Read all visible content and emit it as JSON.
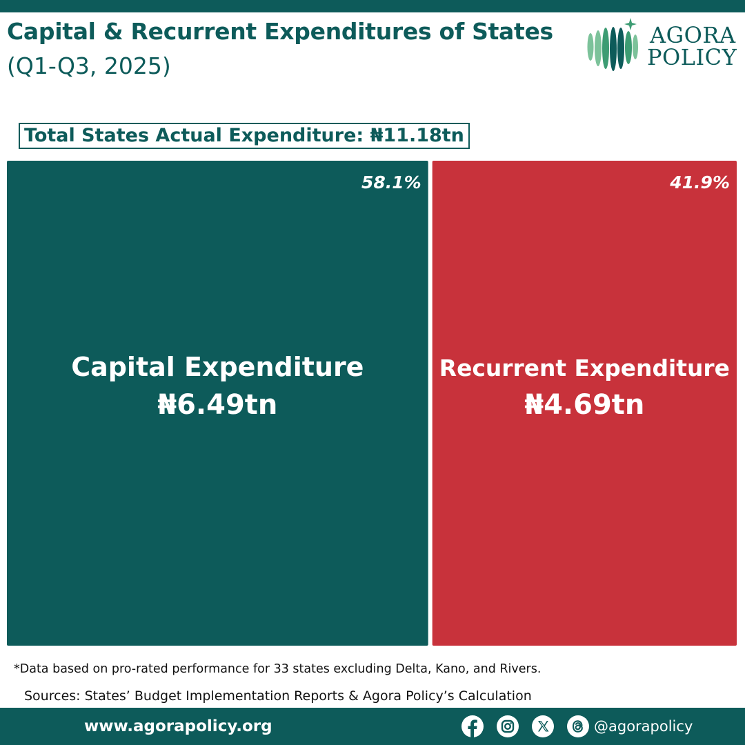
{
  "header": {
    "title": "Capital & Recurrent Expenditures of States",
    "subtitle": "(Q1-Q3, 2025)"
  },
  "logo": {
    "line1": "AGORA",
    "line2": "POLICY"
  },
  "total_label": "Total States Actual Expenditure: ₦11.18tn",
  "chart_data": {
    "type": "treemap",
    "title": "Capital & Recurrent Expenditures of States",
    "total": 11.18,
    "total_display": "₦11.18tn",
    "unit": "₦tn",
    "items": [
      {
        "name": "Capital Expenditure",
        "value": 6.49,
        "display": "₦6.49tn",
        "percent": 58.1,
        "percent_display": "58.1%",
        "color": "#0d5b5a"
      },
      {
        "name": "Recurrent Expenditure",
        "value": 4.69,
        "display": "₦4.69tn",
        "percent": 41.9,
        "percent_display": "41.9%",
        "color": "#c8323b"
      }
    ]
  },
  "footnote": "*Data based on pro-rated performance for 33 states excluding Delta, Kano, and Rivers.",
  "sources": "Sources: States’ Budget Implementation Reports & Agora Policy’s Calculation",
  "footer": {
    "url": "www.agorapolicy.org",
    "handle": "@agorapolicy",
    "icons": [
      "facebook-icon",
      "instagram-icon",
      "x-icon",
      "threads-icon"
    ]
  },
  "colors": {
    "brand": "#0d5b5a",
    "accent": "#c8323b",
    "logo_light": "#7cc29a"
  }
}
